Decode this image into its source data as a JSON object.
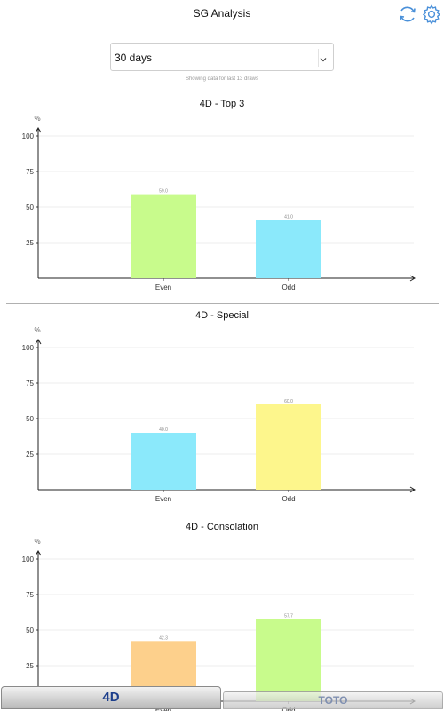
{
  "header": {
    "title": "SG Analysis"
  },
  "period": {
    "selected": "30 days",
    "caption": "Showing data for last 13 draws"
  },
  "icons": {
    "refresh": "refresh-icon",
    "settings": "gear-icon",
    "dropdown": "chevron-down-icon"
  },
  "tabs": [
    {
      "label": "4D",
      "active": true
    },
    {
      "label": "TOTO",
      "active": false
    }
  ],
  "chart_data": [
    {
      "type": "bar",
      "title": "4D - Top 3",
      "ylabel": "%",
      "ylim": [
        0,
        100
      ],
      "yticks": [
        25,
        50,
        75,
        100
      ],
      "categories": [
        "Even",
        "Odd"
      ],
      "values": [
        59.0,
        41.0
      ],
      "value_labels": [
        "59.0",
        "41.0"
      ],
      "colors": [
        "#c8fb8c",
        "#8be9fb"
      ]
    },
    {
      "type": "bar",
      "title": "4D - Special",
      "ylabel": "%",
      "ylim": [
        0,
        100
      ],
      "yticks": [
        25,
        50,
        75,
        100
      ],
      "categories": [
        "Even",
        "Odd"
      ],
      "values": [
        40.0,
        60.0
      ],
      "value_labels": [
        "40.0",
        "60.0"
      ],
      "colors": [
        "#8be9fb",
        "#fdf68c"
      ]
    },
    {
      "type": "bar",
      "title": "4D - Consolation",
      "ylabel": "%",
      "ylim": [
        0,
        100
      ],
      "yticks": [
        25,
        50,
        75,
        100
      ],
      "categories": [
        "Even",
        "Odd"
      ],
      "values": [
        42.3,
        57.7
      ],
      "value_labels": [
        "42.3",
        "57.7"
      ],
      "colors": [
        "#fdd08c",
        "#c8fb8c"
      ]
    }
  ]
}
